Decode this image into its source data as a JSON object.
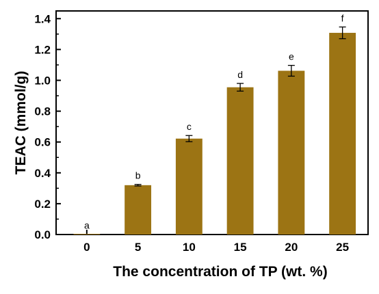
{
  "chart_data": {
    "type": "bar",
    "categories": [
      "0",
      "5",
      "10",
      "15",
      "20",
      "25"
    ],
    "values": [
      0.003,
      0.32,
      0.622,
      0.955,
      1.062,
      1.308
    ],
    "errors": [
      0.0,
      0.005,
      0.02,
      0.025,
      0.035,
      0.038
    ],
    "significance_labels": [
      "a",
      "b",
      "c",
      "d",
      "e",
      "f"
    ],
    "xlabel": "The concentration of TP (wt. %)",
    "ylabel": "TEAC (mmol/g)",
    "ylim": [
      0,
      1.45
    ],
    "yticks": [
      "0.0",
      "0.2",
      "0.4",
      "0.6",
      "0.8",
      "1.0",
      "1.2",
      "1.4"
    ],
    "bar_color": "#9c7414",
    "grid": false,
    "legend": "none"
  }
}
